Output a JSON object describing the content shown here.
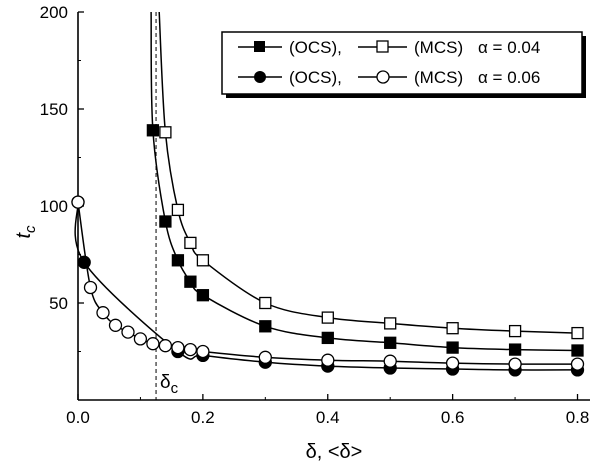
{
  "chart_data": {
    "type": "line",
    "xlabel": "δ, <δ>",
    "ylabel": "t",
    "ylabel_subscript": "c",
    "xlim": [
      0.0,
      0.8
    ],
    "ylim": [
      0,
      200
    ],
    "x_ticks": [
      "0.0",
      "0.2",
      "0.4",
      "0.6",
      "0.8"
    ],
    "y_ticks": [
      "50",
      "100",
      "150",
      "200"
    ],
    "grid": false,
    "legend_position": "top-right",
    "legend": {
      "row1": {
        "ocs": "(OCS),",
        "mcs": "(MCS)",
        "alpha": "α = 0.04"
      },
      "row2": {
        "ocs": "(OCS),",
        "mcs": "(MCS)",
        "alpha": "α = 0.06"
      }
    },
    "annotation": {
      "symbol": "δ",
      "subscript": "c",
      "delta_c": 0.125
    },
    "series": [
      {
        "group": "α = 0.04",
        "method": "OCS",
        "marker": "filled-square",
        "x": [
          0.12,
          0.14,
          0.16,
          0.18,
          0.2,
          0.3,
          0.4,
          0.5,
          0.6,
          0.7,
          0.8
        ],
        "y": [
          139,
          92,
          72,
          61,
          54,
          38,
          32,
          29.5,
          27,
          26,
          25.5
        ]
      },
      {
        "group": "α = 0.04",
        "method": "MCS",
        "marker": "open-square",
        "x": [
          0.14,
          0.16,
          0.18,
          0.2,
          0.3,
          0.4,
          0.5,
          0.6,
          0.7,
          0.8
        ],
        "y": [
          138,
          98,
          81,
          72,
          50,
          42.5,
          39.5,
          37,
          35.5,
          34.5
        ]
      },
      {
        "group": "α = 0.06",
        "method": "OCS",
        "marker": "filled-circle",
        "x": [
          0.0,
          0.01,
          0.16,
          0.2,
          0.3,
          0.4,
          0.5,
          0.6,
          0.7,
          0.8
        ],
        "y": [
          102,
          71,
          25,
          23,
          19.5,
          17.5,
          16.5,
          16,
          15.5,
          15.5
        ]
      },
      {
        "group": "α = 0.06",
        "method": "MCS",
        "marker": "open-circle",
        "x": [
          0.0,
          0.02,
          0.04,
          0.06,
          0.08,
          0.1,
          0.12,
          0.14,
          0.16,
          0.18,
          0.2,
          0.3,
          0.4,
          0.5,
          0.6,
          0.7,
          0.8
        ],
        "y": [
          102,
          58,
          45,
          38.5,
          35,
          31.5,
          29,
          28,
          27,
          26,
          25,
          22,
          20.5,
          20,
          19,
          18.5,
          18.5
        ]
      }
    ]
  }
}
